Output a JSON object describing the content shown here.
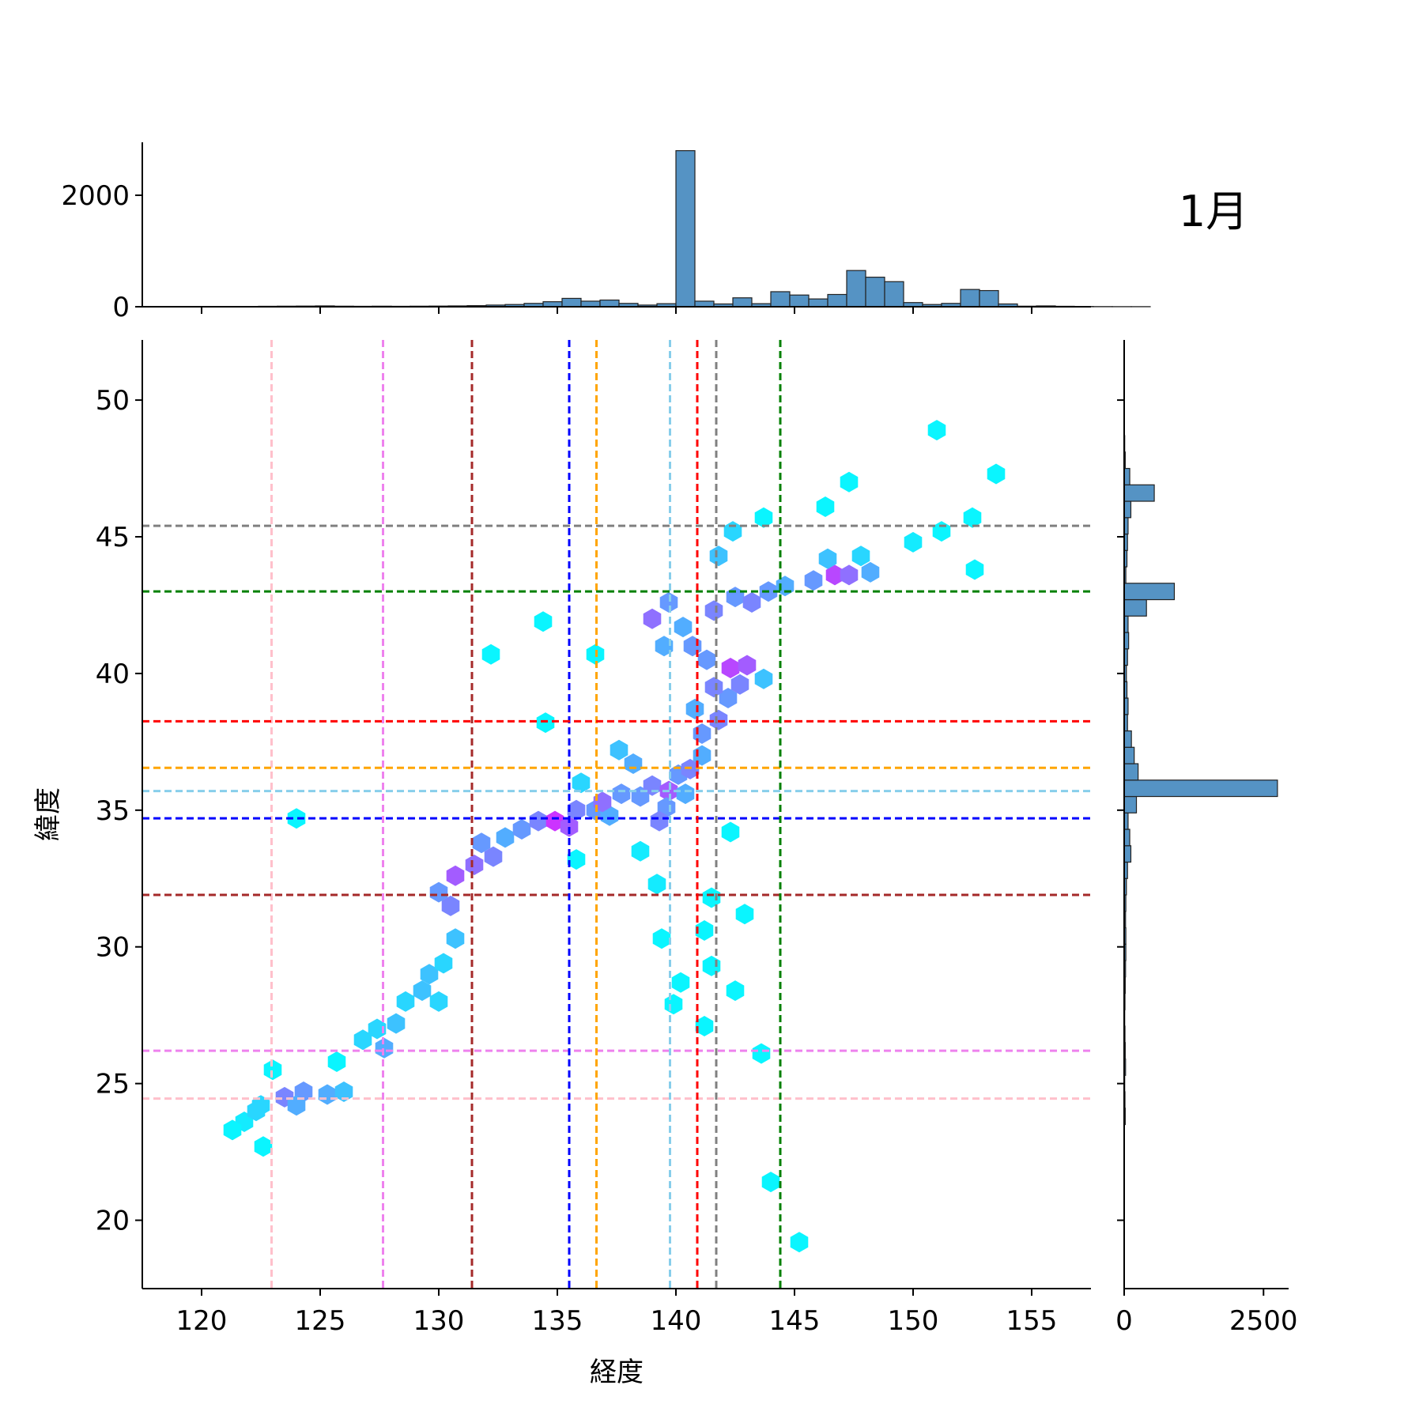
{
  "chart_data": {
    "type": "hexbin",
    "title": "1月",
    "xlabel": "経度",
    "ylabel": "緯度",
    "xlim": [
      117.5,
      157.5
    ],
    "ylim": [
      17.5,
      52.2
    ],
    "x_ticks": [
      120,
      125,
      130,
      135,
      140,
      145,
      150,
      155
    ],
    "y_ticks": [
      20,
      25,
      30,
      35,
      40,
      45,
      50
    ],
    "grid": false,
    "colors": {
      "marginal_bar": "#5593c4",
      "hex_low": "#00ffff",
      "hex_high": "#cc33ff"
    },
    "top_histogram": {
      "ylim": [
        0,
        2950
      ],
      "y_ticks": [
        0,
        2000
      ],
      "bin_start": 120,
      "bin_width": 0.8,
      "counts": [
        0,
        0,
        5,
        8,
        10,
        12,
        15,
        10,
        8,
        10,
        8,
        10,
        12,
        15,
        20,
        30,
        40,
        60,
        90,
        150,
        100,
        120,
        60,
        30,
        55,
        2800,
        100,
        50,
        160,
        55,
        270,
        210,
        140,
        220,
        650,
        530,
        450,
        75,
        40,
        60,
        310,
        290,
        50,
        10,
        15,
        8,
        5,
        3,
        2,
        2
      ]
    },
    "right_histogram": {
      "xlim": [
        0,
        2950
      ],
      "x_ticks": [
        0,
        2500
      ],
      "bin_start": 17.5,
      "bin_width": 0.6,
      "counts": [
        0,
        0,
        0,
        0,
        0,
        0,
        0,
        0,
        0,
        0,
        20,
        15,
        10,
        25,
        20,
        15,
        10,
        15,
        20,
        25,
        30,
        30,
        25,
        30,
        40,
        60,
        120,
        100,
        70,
        220,
        2750,
        250,
        180,
        130,
        60,
        70,
        50,
        40,
        60,
        80,
        70,
        400,
        900,
        30,
        50,
        60,
        70,
        120,
        540,
        100,
        20,
        10,
        5,
        3,
        2
      ]
    },
    "reference_lines": [
      {
        "color": "#ffc0cb",
        "lon": 122.95,
        "lat": 24.45
      },
      {
        "color": "#ee82ee",
        "lon": 127.65,
        "lat": 26.2
      },
      {
        "color": "#a52a2a",
        "lon": 131.4,
        "lat": 31.9
      },
      {
        "color": "#0000ff",
        "lon": 135.5,
        "lat": 34.7
      },
      {
        "color": "#ffa500",
        "lon": 136.65,
        "lat": 36.55
      },
      {
        "color": "#87ceeb",
        "lon": 139.75,
        "lat": 35.7
      },
      {
        "color": "#ff0000",
        "lon": 140.9,
        "lat": 38.25
      },
      {
        "color": "#808080",
        "lon": 141.7,
        "lat": 45.4
      },
      {
        "color": "#008000",
        "lon": 144.4,
        "lat": 43.0
      }
    ],
    "hex_cells": [
      [
        123.5,
        24.5,
        0.6
      ],
      [
        124.3,
        24.7,
        0.5
      ],
      [
        125.3,
        24.6,
        0.4
      ],
      [
        124.0,
        24.2,
        0.4
      ],
      [
        122.5,
        24.2,
        0.2
      ],
      [
        121.8,
        23.6,
        0.1
      ],
      [
        121.3,
        23.3,
        0.05
      ],
      [
        122.3,
        24.0,
        0.2
      ],
      [
        126.0,
        24.7,
        0.3
      ],
      [
        123.0,
        25.5,
        0.05
      ],
      [
        122.6,
        22.7,
        0.05
      ],
      [
        125.7,
        25.8,
        0.05
      ],
      [
        126.8,
        26.6,
        0.2
      ],
      [
        127.7,
        26.3,
        0.4
      ],
      [
        128.2,
        27.2,
        0.3
      ],
      [
        127.4,
        27.0,
        0.2
      ],
      [
        128.6,
        28.0,
        0.2
      ],
      [
        129.3,
        28.4,
        0.3
      ],
      [
        130.0,
        28.0,
        0.2
      ],
      [
        129.6,
        29.0,
        0.3
      ],
      [
        130.2,
        29.4,
        0.2
      ],
      [
        130.7,
        30.3,
        0.3
      ],
      [
        130.5,
        31.5,
        0.6
      ],
      [
        130.0,
        32.0,
        0.5
      ],
      [
        130.7,
        32.6,
        0.8
      ],
      [
        131.5,
        33.0,
        0.7
      ],
      [
        132.3,
        33.3,
        0.6
      ],
      [
        131.8,
        33.8,
        0.5
      ],
      [
        132.8,
        34.0,
        0.4
      ],
      [
        133.5,
        34.3,
        0.5
      ],
      [
        134.2,
        34.6,
        0.6
      ],
      [
        134.9,
        34.6,
        1.0
      ],
      [
        135.5,
        34.4,
        0.8
      ],
      [
        135.8,
        35.0,
        0.6
      ],
      [
        136.6,
        35.0,
        0.5
      ],
      [
        137.2,
        34.8,
        0.4
      ],
      [
        136.9,
        35.3,
        0.7
      ],
      [
        137.7,
        35.6,
        0.5
      ],
      [
        138.5,
        35.5,
        0.5
      ],
      [
        139.0,
        35.9,
        0.6
      ],
      [
        139.7,
        35.7,
        0.8
      ],
      [
        140.1,
        36.3,
        0.5
      ],
      [
        140.6,
        36.5,
        0.6
      ],
      [
        139.6,
        35.1,
        0.5
      ],
      [
        139.3,
        34.6,
        0.6
      ],
      [
        140.4,
        35.6,
        0.4
      ],
      [
        141.1,
        37.0,
        0.4
      ],
      [
        141.1,
        37.8,
        0.5
      ],
      [
        141.8,
        38.3,
        0.6
      ],
      [
        140.8,
        38.7,
        0.4
      ],
      [
        142.2,
        39.1,
        0.5
      ],
      [
        141.6,
        39.5,
        0.6
      ],
      [
        142.3,
        40.2,
        0.9
      ],
      [
        143.0,
        40.3,
        0.8
      ],
      [
        141.3,
        40.5,
        0.5
      ],
      [
        142.7,
        39.6,
        0.6
      ],
      [
        143.7,
        39.8,
        0.3
      ],
      [
        140.7,
        41.0,
        0.5
      ],
      [
        139.5,
        41.0,
        0.4
      ],
      [
        139.0,
        42.0,
        0.7
      ],
      [
        139.7,
        42.6,
        0.5
      ],
      [
        140.3,
        41.7,
        0.4
      ],
      [
        141.6,
        42.3,
        0.6
      ],
      [
        142.5,
        42.8,
        0.5
      ],
      [
        143.2,
        42.6,
        0.6
      ],
      [
        143.9,
        43.0,
        0.5
      ],
      [
        144.6,
        43.2,
        0.4
      ],
      [
        141.8,
        44.3,
        0.3
      ],
      [
        142.4,
        45.2,
        0.2
      ],
      [
        145.8,
        43.4,
        0.5
      ],
      [
        146.7,
        43.6,
        0.9
      ],
      [
        147.3,
        43.6,
        0.7
      ],
      [
        148.2,
        43.7,
        0.4
      ],
      [
        146.4,
        44.2,
        0.3
      ],
      [
        147.8,
        44.3,
        0.2
      ],
      [
        150.0,
        44.8,
        0.1
      ],
      [
        151.2,
        45.2,
        0.05
      ],
      [
        152.5,
        45.7,
        0.05
      ],
      [
        137.6,
        37.2,
        0.3
      ],
      [
        138.2,
        36.7,
        0.4
      ],
      [
        136.0,
        36.0,
        0.2
      ],
      [
        138.5,
        33.5,
        0.1
      ],
      [
        139.2,
        32.3,
        0.1
      ],
      [
        141.5,
        31.8,
        0.05
      ],
      [
        142.3,
        34.2,
        0.05
      ],
      [
        142.9,
        31.2,
        0.05
      ],
      [
        145.2,
        19.2,
        0.05
      ],
      [
        144.0,
        21.4,
        0.05
      ],
      [
        143.6,
        26.1,
        0.05
      ],
      [
        142.5,
        28.4,
        0.05
      ],
      [
        141.2,
        27.1,
        0.05
      ],
      [
        139.9,
        27.9,
        0.05
      ],
      [
        140.2,
        28.7,
        0.05
      ],
      [
        139.4,
        30.3,
        0.05
      ],
      [
        141.5,
        29.3,
        0.05
      ],
      [
        141.2,
        30.6,
        0.05
      ],
      [
        124.0,
        34.7,
        0.05
      ],
      [
        132.2,
        40.7,
        0.05
      ],
      [
        134.4,
        41.9,
        0.05
      ],
      [
        136.6,
        40.7,
        0.05
      ],
      [
        134.5,
        38.2,
        0.05
      ],
      [
        151.0,
        48.9,
        0.05
      ],
      [
        153.5,
        47.3,
        0.05
      ],
      [
        147.3,
        47.0,
        0.05
      ],
      [
        146.3,
        46.1,
        0.05
      ],
      [
        152.6,
        43.8,
        0.05
      ],
      [
        143.7,
        45.7,
        0.05
      ],
      [
        135.8,
        33.2,
        0.05
      ]
    ]
  }
}
